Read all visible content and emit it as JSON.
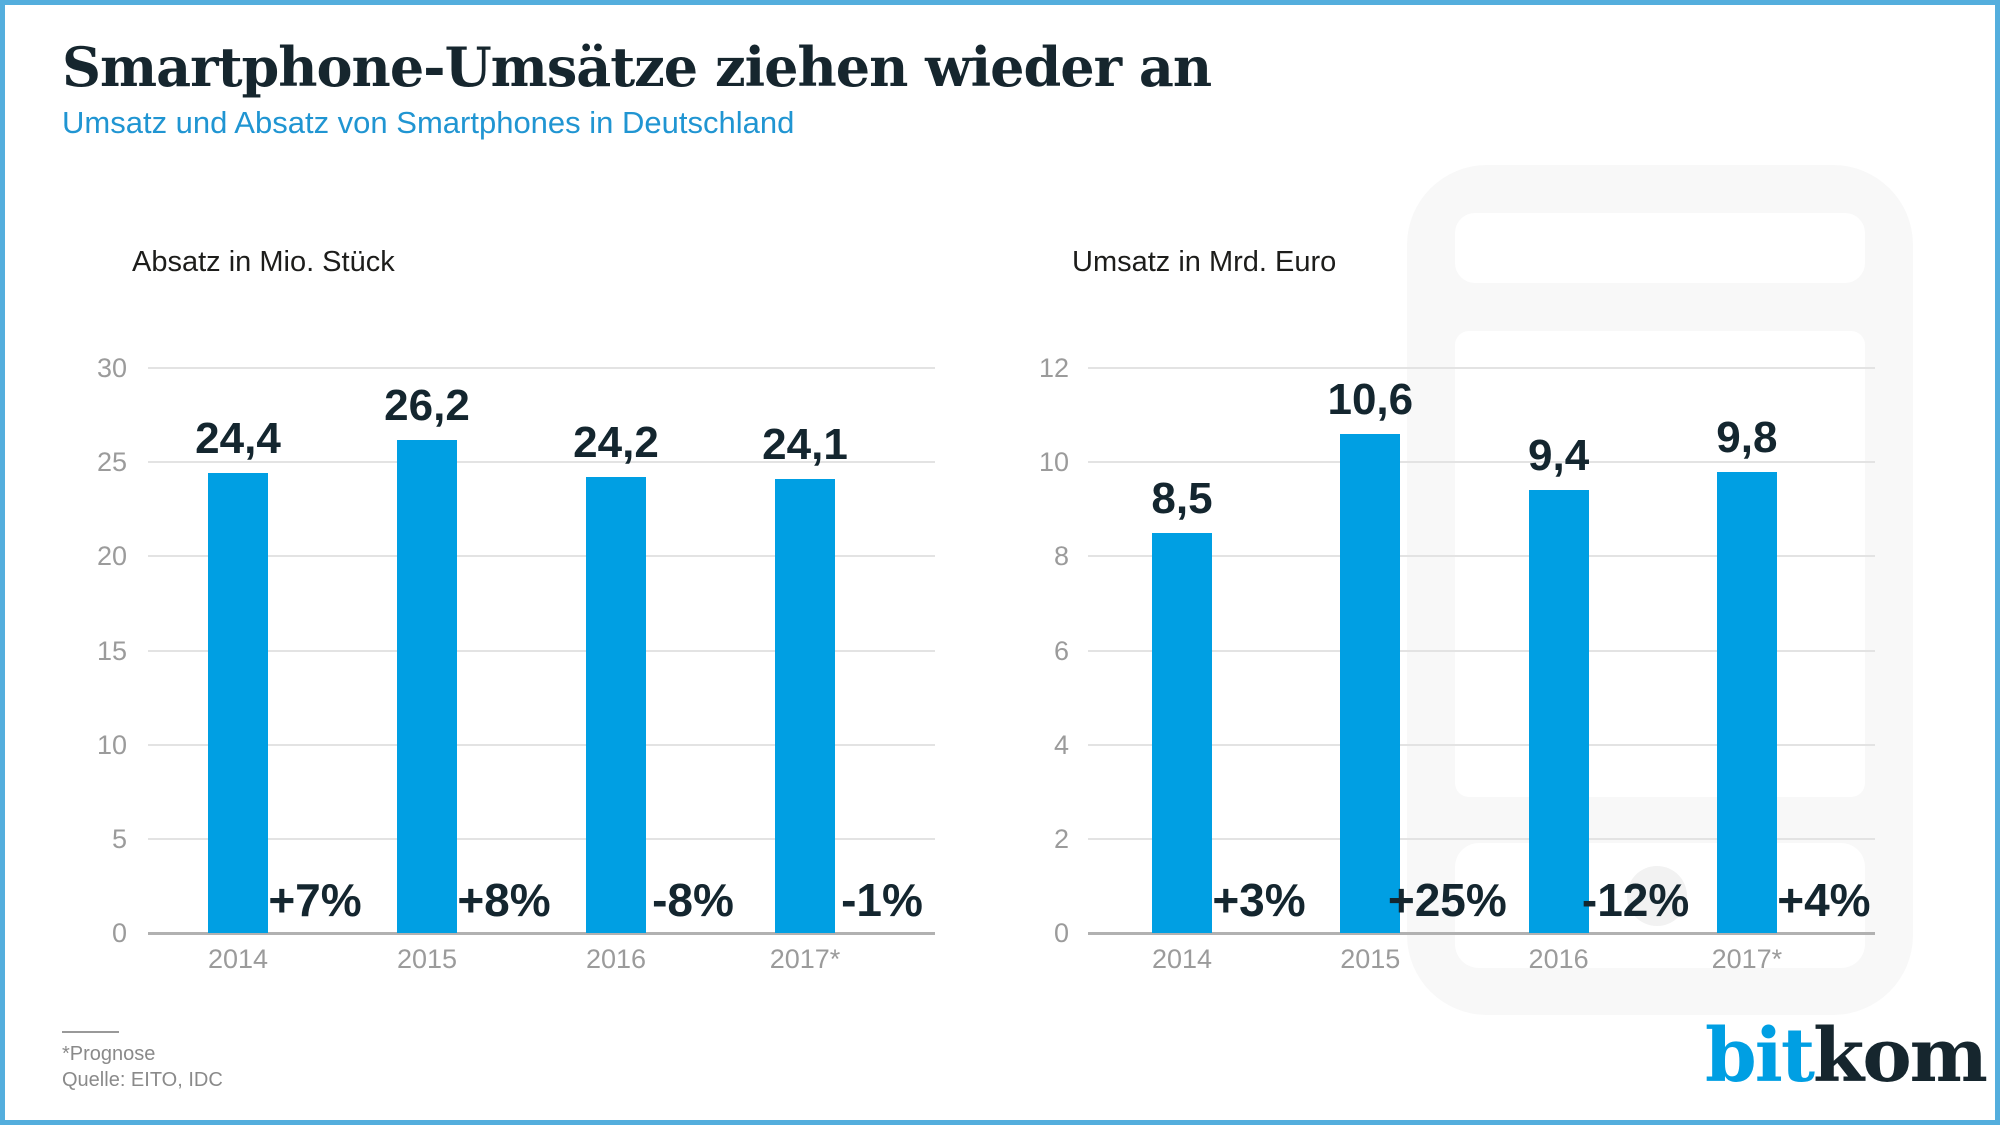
{
  "header": {
    "title": "Smartphone-Umsätze ziehen wieder an",
    "subtitle": "Umsatz und Absatz von Smartphones in Deutschland"
  },
  "chart_data": [
    {
      "type": "bar",
      "title": "Absatz in Mio. Stück",
      "categories": [
        "2014",
        "2015",
        "2016",
        "2017*"
      ],
      "values": [
        24.4,
        26.2,
        24.2,
        24.1
      ],
      "value_labels": [
        "24,4",
        "26,2",
        "24,2",
        "24,1"
      ],
      "change_labels": [
        "+7%",
        "+8%",
        "-8%",
        "-1%"
      ],
      "yticks": [
        0,
        5,
        10,
        15,
        20,
        25,
        30
      ],
      "ylim": [
        0,
        30
      ],
      "xlabel": "",
      "ylabel": "Absatz in Mio. Stück",
      "grid": true,
      "legend": "none"
    },
    {
      "type": "bar",
      "title": "Umsatz in Mrd. Euro",
      "categories": [
        "2014",
        "2015",
        "2016",
        "2017*"
      ],
      "values": [
        8.5,
        10.6,
        9.4,
        9.8
      ],
      "value_labels": [
        "8,5",
        "10,6",
        "9,4",
        "9,8"
      ],
      "change_labels": [
        "+3%",
        "+25%",
        "-12%",
        "+4%"
      ],
      "yticks": [
        0,
        2,
        4,
        6,
        8,
        10,
        12
      ],
      "ylim": [
        0,
        12
      ],
      "xlabel": "",
      "ylabel": "Umsatz in Mrd. Euro",
      "grid": true,
      "legend": "none"
    }
  ],
  "footnote": {
    "line1": "*Prognose",
    "line2": "Quelle: EITO, IDC"
  },
  "logo": {
    "part1": "bit",
    "part2": "kom"
  },
  "colors": {
    "bar_blue": "#009fe3",
    "subtitle_blue": "#2095d2",
    "dark_text": "#16262e",
    "label_gray": "#9b9b9b",
    "footnote_gray": "#8a8a8a",
    "gridline": "#e3e3e3",
    "axis_line": "#b1b1b1",
    "phone_gray": "#f8f8f8",
    "border_blue": "#54aedd"
  }
}
